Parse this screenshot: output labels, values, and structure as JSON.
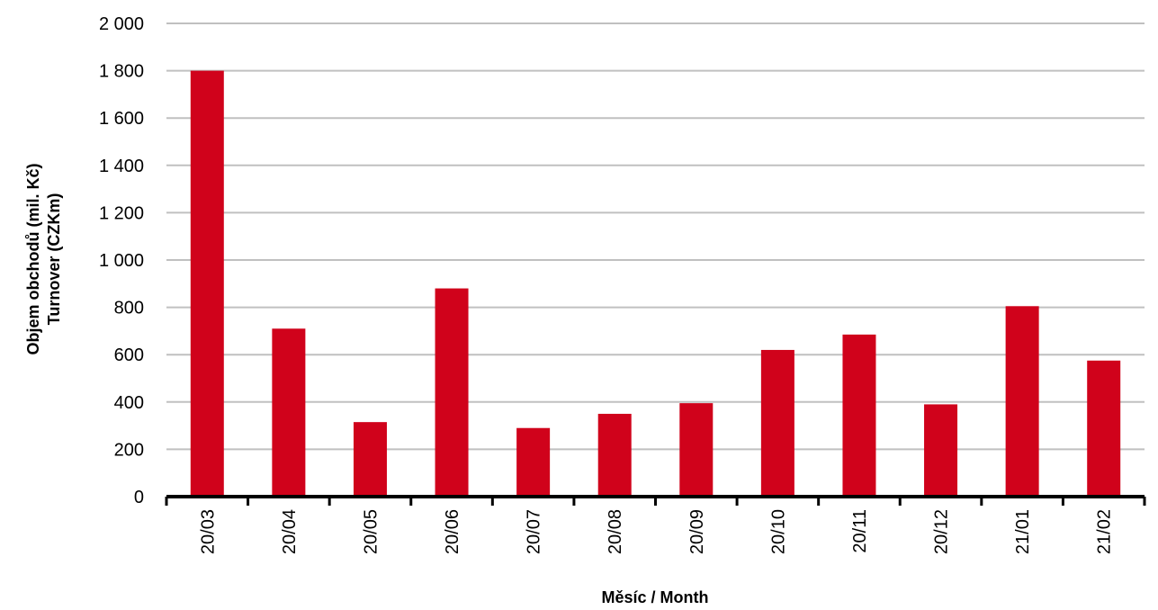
{
  "chart_data": {
    "type": "bar",
    "title": "",
    "xlabel": "Měsíc / Month",
    "ylabel_line1": "Objem obchodů (mil. Kč)",
    "ylabel_line2": "Turnover (CZKm)",
    "categories": [
      "20/03",
      "20/04",
      "20/05",
      "20/06",
      "20/07",
      "20/08",
      "20/09",
      "20/10",
      "20/11",
      "20/12",
      "21/01",
      "21/02"
    ],
    "values": [
      1800,
      710,
      315,
      880,
      290,
      350,
      395,
      620,
      685,
      390,
      805,
      575
    ],
    "ylim": [
      0,
      2000
    ],
    "yticks": [
      0,
      200,
      400,
      600,
      800,
      1000,
      1200,
      1400,
      1600,
      1800,
      2000
    ],
    "ytick_labels": [
      "0",
      "200",
      "400",
      "600",
      "800",
      "1 000",
      "1 200",
      "1 400",
      "1 600",
      "1 800",
      "2 000"
    ],
    "grid": true,
    "legend": "none",
    "bar_color": "#d0021b",
    "grid_color": "#c0c0c0",
    "axis_color": "#000000"
  }
}
